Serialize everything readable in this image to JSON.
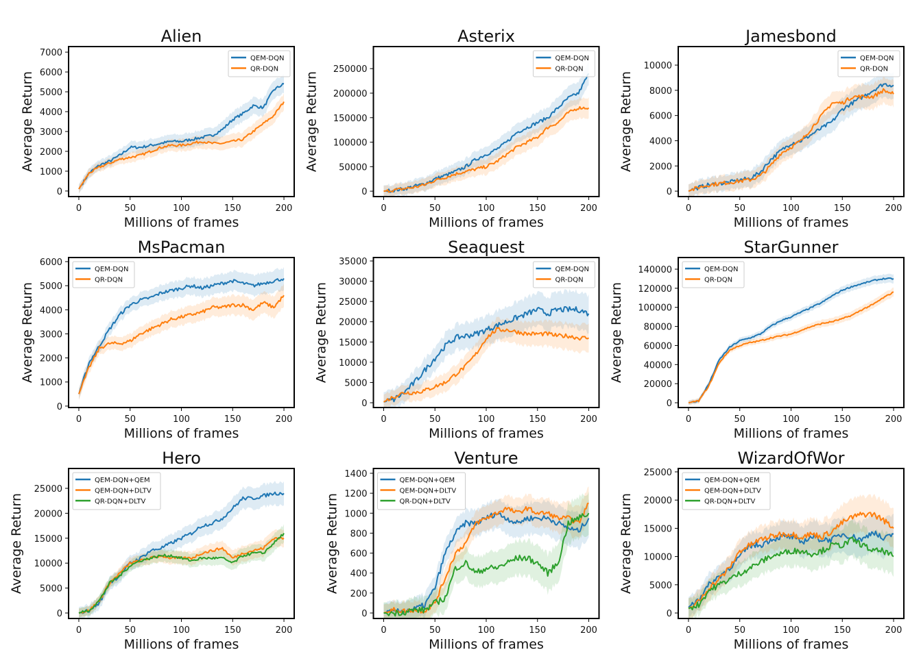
{
  "colors": {
    "blue": "#1f77b4",
    "orange": "#ff7f0e",
    "green": "#2ca02c"
  },
  "chart_data": [
    {
      "type": "line",
      "title": "Alien",
      "xlabel": "Millions of frames",
      "ylabel": "Average Return",
      "xlim": [
        -10,
        210
      ],
      "ylim": [
        -280,
        7280
      ],
      "xticks": [
        0,
        50,
        100,
        150,
        200
      ],
      "yticks": [
        0,
        1000,
        2000,
        3000,
        4000,
        5000,
        6000,
        7000
      ],
      "legend": "top-right",
      "grid": false,
      "x": [
        0,
        10,
        20,
        30,
        40,
        50,
        60,
        70,
        80,
        90,
        100,
        110,
        120,
        130,
        140,
        150,
        160,
        170,
        180,
        190,
        200
      ],
      "series": [
        {
          "name": "QEM-DQN",
          "color": "#1f77b4",
          "band": 400,
          "values": [
            100,
            900,
            1300,
            1500,
            1800,
            2200,
            2200,
            2300,
            2400,
            2500,
            2500,
            2600,
            2700,
            2800,
            3100,
            3600,
            3900,
            4300,
            4200,
            5100,
            5400
          ]
        },
        {
          "name": "QR-DQN",
          "color": "#ff7f0e",
          "band": 350,
          "values": [
            100,
            900,
            1200,
            1400,
            1600,
            1700,
            1800,
            2000,
            2200,
            2300,
            2300,
            2400,
            2500,
            2400,
            2400,
            2500,
            2600,
            3000,
            3400,
            3800,
            4500
          ]
        }
      ]
    },
    {
      "type": "line",
      "title": "Asterix",
      "xlabel": "Millions of frames",
      "ylabel": "Average Return",
      "xlim": [
        -10,
        210
      ],
      "ylim": [
        -11000,
        295000
      ],
      "xticks": [
        0,
        50,
        100,
        150,
        200
      ],
      "yticks": [
        0,
        50000,
        100000,
        150000,
        200000,
        250000
      ],
      "legend": "top-right",
      "grid": false,
      "x": [
        0,
        10,
        20,
        30,
        40,
        50,
        60,
        70,
        80,
        90,
        100,
        110,
        120,
        130,
        140,
        150,
        160,
        170,
        180,
        190,
        200
      ],
      "series": [
        {
          "name": "QEM-DQN",
          "color": "#1f77b4",
          "band": 20000,
          "values": [
            0,
            2000,
            5000,
            10000,
            15000,
            25000,
            32000,
            40000,
            50000,
            65000,
            75000,
            85000,
            100000,
            120000,
            130000,
            140000,
            150000,
            170000,
            190000,
            200000,
            240000
          ]
        },
        {
          "name": "QR-DQN",
          "color": "#ff7f0e",
          "band": 18000,
          "values": [
            0,
            2000,
            5000,
            8000,
            13000,
            22000,
            28000,
            35000,
            40000,
            45000,
            50000,
            60000,
            75000,
            90000,
            100000,
            110000,
            130000,
            140000,
            160000,
            170000,
            170000
          ]
        }
      ]
    },
    {
      "type": "line",
      "title": "Jamesbond",
      "xlabel": "Millions of frames",
      "ylabel": "Average Return",
      "xlim": [
        -10,
        210
      ],
      "ylim": [
        -430,
        11470
      ],
      "xticks": [
        0,
        50,
        100,
        150,
        200
      ],
      "yticks": [
        0,
        2000,
        4000,
        6000,
        8000,
        10000
      ],
      "legend": "top-right",
      "grid": false,
      "x": [
        0,
        10,
        20,
        30,
        40,
        50,
        60,
        70,
        80,
        90,
        100,
        110,
        120,
        130,
        140,
        150,
        160,
        170,
        180,
        190,
        200
      ],
      "series": [
        {
          "name": "QEM-DQN",
          "color": "#1f77b4",
          "band": 900,
          "values": [
            0,
            300,
            500,
            600,
            700,
            900,
            1000,
            1500,
            2500,
            3200,
            3800,
            4000,
            4500,
            5000,
            5500,
            6500,
            7000,
            7500,
            8000,
            8500,
            8400
          ]
        },
        {
          "name": "QR-DQN",
          "color": "#ff7f0e",
          "band": 900,
          "values": [
            0,
            300,
            500,
            600,
            700,
            800,
            900,
            1200,
            2000,
            3000,
            3500,
            4000,
            5000,
            6000,
            7000,
            7000,
            7500,
            7500,
            7500,
            8000,
            7700
          ]
        }
      ]
    },
    {
      "type": "line",
      "title": "MsPacman",
      "xlabel": "Millions of frames",
      "ylabel": "Average Return",
      "xlim": [
        -10,
        210
      ],
      "ylim": [
        -60,
        6170
      ],
      "xticks": [
        0,
        50,
        100,
        150,
        200
      ],
      "yticks": [
        0,
        1000,
        2000,
        3000,
        4000,
        5000,
        6000
      ],
      "legend": "top-left",
      "grid": false,
      "x": [
        0,
        10,
        20,
        30,
        40,
        50,
        60,
        70,
        80,
        90,
        100,
        110,
        120,
        130,
        140,
        150,
        160,
        170,
        180,
        190,
        200
      ],
      "series": [
        {
          "name": "QEM-DQN",
          "color": "#1f77b4",
          "band": 400,
          "values": [
            500,
            1800,
            2500,
            3200,
            3800,
            4200,
            4400,
            4500,
            4700,
            4800,
            4900,
            5000,
            4900,
            5000,
            5100,
            5200,
            5100,
            5000,
            5100,
            5200,
            5300
          ]
        },
        {
          "name": "QR-DQN",
          "color": "#ff7f0e",
          "band": 400,
          "values": [
            500,
            1600,
            2400,
            2600,
            2600,
            2700,
            3000,
            3200,
            3400,
            3600,
            3700,
            3800,
            3900,
            4100,
            4100,
            4200,
            4200,
            4000,
            4300,
            4100,
            4600
          ]
        }
      ]
    },
    {
      "type": "line",
      "title": "Seaquest",
      "xlabel": "Millions of frames",
      "ylabel": "Average Return",
      "xlim": [
        -10,
        210
      ],
      "ylim": [
        -1180,
        35850
      ],
      "xticks": [
        0,
        50,
        100,
        150,
        200
      ],
      "yticks": [
        0,
        5000,
        10000,
        15000,
        20000,
        25000,
        30000,
        35000
      ],
      "legend": "top-right",
      "grid": false,
      "x": [
        0,
        10,
        20,
        30,
        40,
        50,
        60,
        70,
        80,
        90,
        100,
        110,
        120,
        130,
        140,
        150,
        160,
        170,
        180,
        190,
        200
      ],
      "series": [
        {
          "name": "QEM-DQN",
          "color": "#1f77b4",
          "band": 4000,
          "values": [
            200,
            800,
            2500,
            5000,
            8000,
            11000,
            14000,
            16000,
            16500,
            17000,
            18000,
            19000,
            20000,
            21000,
            22000,
            23000,
            22000,
            23000,
            23000,
            23000,
            22000
          ]
        },
        {
          "name": "QR-DQN",
          "color": "#ff7f0e",
          "band": 3000,
          "values": [
            200,
            1500,
            2500,
            2500,
            3000,
            4000,
            5000,
            7000,
            9000,
            12000,
            16000,
            18000,
            18000,
            17500,
            17000,
            17000,
            17000,
            16500,
            16500,
            16000,
            16000
          ]
        }
      ]
    },
    {
      "type": "line",
      "title": "StarGunner",
      "xlabel": "Millions of frames",
      "ylabel": "Average Return",
      "xlim": [
        -10,
        210
      ],
      "ylim": [
        -5000,
        152200
      ],
      "xticks": [
        0,
        50,
        100,
        150,
        200
      ],
      "yticks": [
        0,
        20000,
        40000,
        60000,
        80000,
        100000,
        120000,
        140000
      ],
      "legend": "top-left",
      "grid": false,
      "x": [
        0,
        10,
        20,
        30,
        40,
        50,
        60,
        70,
        80,
        90,
        100,
        110,
        120,
        130,
        140,
        150,
        160,
        170,
        180,
        190,
        200
      ],
      "series": [
        {
          "name": "QEM-DQN",
          "color": "#1f77b4",
          "band": 4000,
          "values": [
            0,
            2000,
            20000,
            45000,
            58000,
            65000,
            68000,
            72000,
            80000,
            86000,
            90000,
            95000,
            100000,
            105000,
            112000,
            118000,
            122000,
            125000,
            128000,
            130000,
            130000
          ]
        },
        {
          "name": "QR-DQN",
          "color": "#ff7f0e",
          "band": 4000,
          "values": [
            0,
            2000,
            18000,
            42000,
            55000,
            60000,
            63000,
            65000,
            68000,
            70000,
            72000,
            76000,
            80000,
            83000,
            85000,
            88000,
            92000,
            98000,
            103000,
            110000,
            116000
          ]
        }
      ]
    },
    {
      "type": "line",
      "title": "Hero",
      "xlabel": "Millions of frames",
      "ylabel": "Average Return",
      "xlim": [
        -10,
        210
      ],
      "ylim": [
        -1100,
        28980
      ],
      "xticks": [
        0,
        50,
        100,
        150,
        200
      ],
      "yticks": [
        0,
        5000,
        10000,
        15000,
        20000,
        25000
      ],
      "legend": "top-left",
      "grid": false,
      "x": [
        0,
        10,
        20,
        30,
        40,
        50,
        60,
        70,
        80,
        90,
        100,
        110,
        120,
        130,
        140,
        150,
        160,
        170,
        180,
        190,
        200
      ],
      "series": [
        {
          "name": "QEM-DQN+QEM",
          "color": "#1f77b4",
          "band": 2000,
          "values": [
            0,
            500,
            2000,
            6000,
            7500,
            10000,
            11000,
            12500,
            13000,
            14000,
            15000,
            16000,
            17500,
            18000,
            19000,
            21000,
            23000,
            23000,
            23500,
            24000,
            24000
          ]
        },
        {
          "name": "QEM-DQN+DLTV",
          "color": "#ff7f0e",
          "band": 1500,
          "values": [
            0,
            500,
            2500,
            6000,
            8000,
            10000,
            10500,
            11000,
            11500,
            11000,
            11000,
            11000,
            12000,
            12500,
            13000,
            11000,
            12000,
            12500,
            13000,
            15000,
            15000
          ]
        },
        {
          "name": "QR-DQN+DLTV",
          "color": "#2ca02c",
          "band": 1500,
          "values": [
            0,
            500,
            2500,
            6000,
            7500,
            9500,
            10500,
            11000,
            11500,
            11500,
            11000,
            10500,
            11000,
            11000,
            11000,
            10000,
            11500,
            12000,
            12000,
            14000,
            16000
          ]
        }
      ]
    },
    {
      "type": "line",
      "title": "Venture",
      "xlabel": "Millions of frames",
      "ylabel": "Average Return",
      "xlim": [
        -10,
        210
      ],
      "ylim": [
        -55,
        1448
      ],
      "xticks": [
        0,
        50,
        100,
        150,
        200
      ],
      "yticks": [
        0,
        200,
        400,
        600,
        800,
        1000,
        1200,
        1400
      ],
      "legend": "top-left",
      "grid": false,
      "x": [
        0,
        10,
        20,
        30,
        40,
        50,
        60,
        70,
        80,
        90,
        100,
        110,
        120,
        130,
        140,
        150,
        160,
        170,
        180,
        190,
        200
      ],
      "series": [
        {
          "name": "QEM-DQN+QEM",
          "color": "#1f77b4",
          "band": 160,
          "values": [
            0,
            10,
            20,
            40,
            80,
            250,
            600,
            800,
            900,
            900,
            950,
            1000,
            950,
            900,
            950,
            950,
            950,
            900,
            850,
            820,
            950
          ]
        },
        {
          "name": "QEM-DQN+DLTV",
          "color": "#ff7f0e",
          "band": 140,
          "values": [
            0,
            30,
            20,
            30,
            20,
            100,
            350,
            600,
            700,
            900,
            950,
            1000,
            1050,
            1000,
            1050,
            1000,
            1000,
            950,
            950,
            900,
            1100
          ]
        },
        {
          "name": "QR-DQN+DLTV",
          "color": "#2ca02c",
          "band": 180,
          "values": [
            0,
            0,
            10,
            30,
            30,
            100,
            150,
            450,
            500,
            400,
            450,
            450,
            500,
            550,
            550,
            500,
            400,
            500,
            900,
            950,
            1000
          ]
        }
      ]
    },
    {
      "type": "line",
      "title": "WizardOfWor",
      "xlabel": "Millions of frames",
      "ylabel": "Average Return",
      "xlim": [
        -10,
        210
      ],
      "ylim": [
        -970,
        25600
      ],
      "xticks": [
        0,
        50,
        100,
        150,
        200
      ],
      "yticks": [
        0,
        5000,
        10000,
        15000,
        20000,
        25000
      ],
      "legend": "top-left",
      "grid": false,
      "x": [
        0,
        10,
        20,
        30,
        40,
        50,
        60,
        70,
        80,
        90,
        100,
        110,
        120,
        130,
        140,
        150,
        160,
        170,
        180,
        190,
        200
      ],
      "series": [
        {
          "name": "QEM-DQN+QEM",
          "color": "#1f77b4",
          "band": 3000,
          "values": [
            1000,
            2500,
            5000,
            6500,
            8000,
            10000,
            12000,
            12000,
            13000,
            13500,
            13500,
            12500,
            13500,
            13000,
            13000,
            14000,
            13500,
            13000,
            14500,
            13000,
            14000
          ]
        },
        {
          "name": "QEM-DQN+DLTV",
          "color": "#ff7f0e",
          "band": 3000,
          "values": [
            800,
            2000,
            4500,
            6000,
            8000,
            11000,
            12000,
            13000,
            13500,
            14000,
            14000,
            13500,
            14000,
            13500,
            14500,
            16000,
            17000,
            17500,
            17500,
            16500,
            15000
          ]
        },
        {
          "name": "QR-DQN+DLTV",
          "color": "#2ca02c",
          "band": 3000,
          "values": [
            800,
            1500,
            4000,
            5000,
            6000,
            7000,
            8000,
            9000,
            10000,
            10500,
            11000,
            11000,
            10500,
            11000,
            12000,
            12000,
            13000,
            12000,
            11000,
            11000,
            10000
          ]
        }
      ]
    }
  ]
}
